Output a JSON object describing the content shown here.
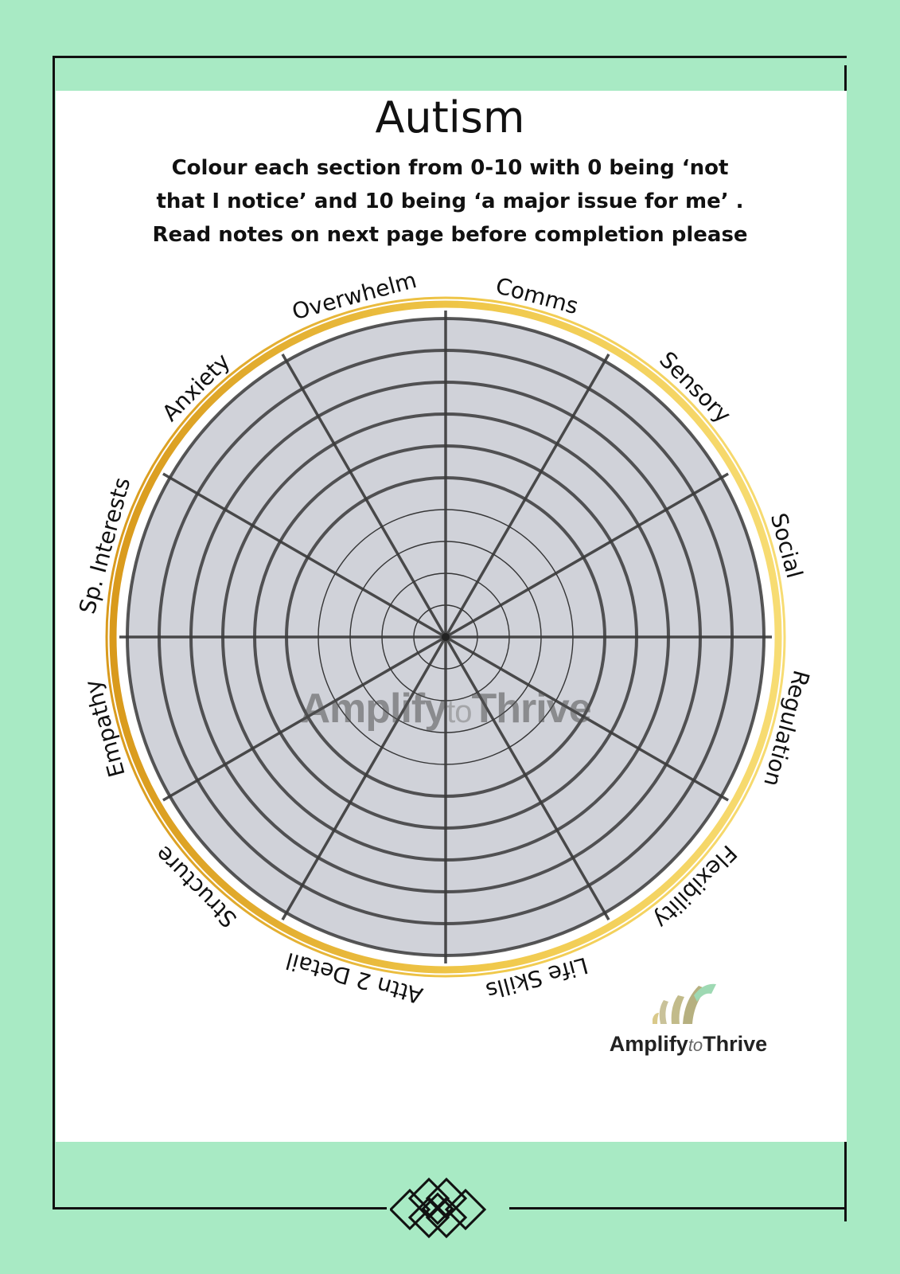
{
  "title": "Autism",
  "instructions": [
    "Colour each section from 0-10 with 0 being ‘not",
    "that I notice’ and 10 being ‘a major issue for me’ .",
    "Read notes on next page before completion please"
  ],
  "wheel": {
    "scale_max": 10,
    "segments": [
      "Comms",
      "Sensory",
      "Social",
      "Regulation",
      "Flexibility",
      "Life Skills",
      "Attn 2 Detail",
      "Structure",
      "Empathy",
      "Sp. Interests",
      "Anxiety",
      "Overwhelm"
    ],
    "fill_color": "#d0d2d9",
    "ring_gold": "#e8b832"
  },
  "logo": {
    "brand_main": "Amplify",
    "brand_to": "to",
    "brand_end": "Thrive"
  },
  "colors": {
    "background": "#a8eac4",
    "panel": "#ffffff",
    "line": "#111111"
  }
}
